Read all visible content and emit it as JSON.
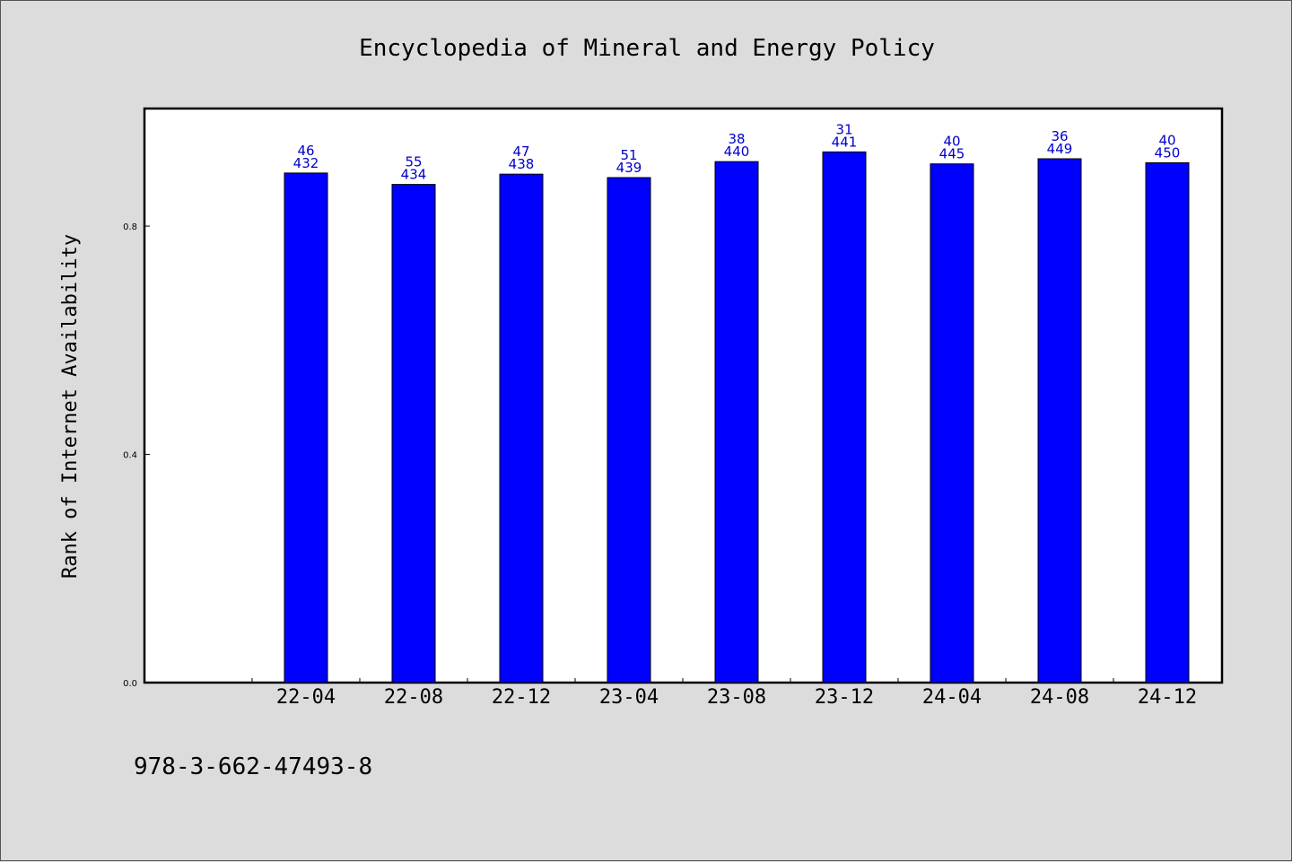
{
  "chart_data": {
    "type": "bar",
    "title": "Encyclopedia of Mineral and Energy Policy",
    "ylabel": "Rank of Internet Availability",
    "xlabel": "",
    "categories": [
      "22-04",
      "22-08",
      "22-12",
      "23-04",
      "23-08",
      "23-12",
      "24-04",
      "24-08",
      "24-12"
    ],
    "values": [
      0.893,
      0.873,
      0.891,
      0.885,
      0.913,
      0.93,
      0.909,
      0.918,
      0.911
    ],
    "labels_top": [
      "46",
      "55",
      "47",
      "51",
      "38",
      "31",
      "40",
      "36",
      "40"
    ],
    "labels_bottom": [
      "432",
      "434",
      "438",
      "439",
      "440",
      "441",
      "445",
      "449",
      "450"
    ],
    "yticks": [
      "0.0",
      "0.4",
      "0.8"
    ],
    "ytick_values": [
      0.0,
      0.4,
      0.8
    ],
    "ylim": [
      0,
      1.006
    ],
    "bar_color": "#0000ff",
    "label_color": "#0000cc",
    "grid": false
  },
  "footer_text": "978-3-662-47493-8"
}
